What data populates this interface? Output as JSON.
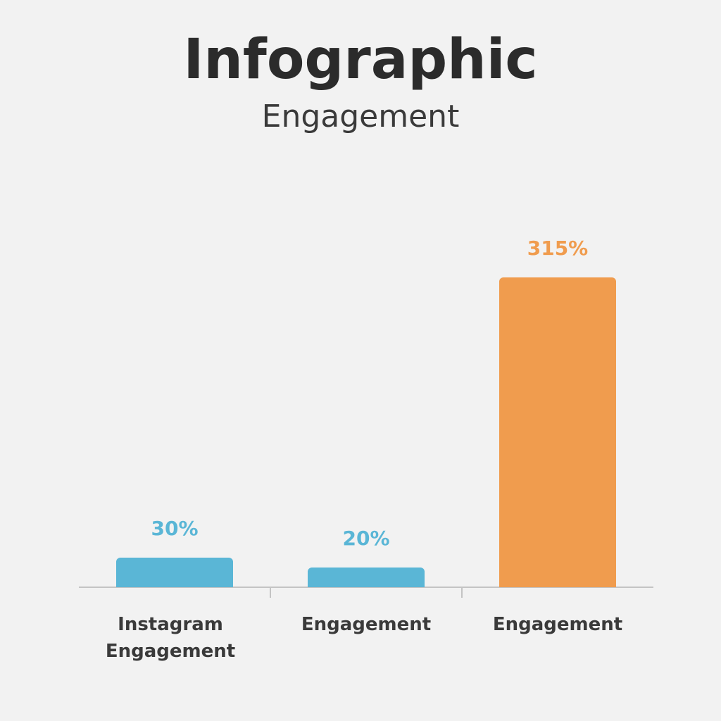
{
  "chart_data": {
    "type": "bar",
    "title": "Infographic",
    "subtitle": "Engagement",
    "categories": [
      "Instagram Engagement",
      "Engagement",
      "Engagement"
    ],
    "values": [
      30,
      20,
      315
    ],
    "value_labels": [
      "30%",
      "20%",
      "315%"
    ],
    "colors": [
      "#5ab6d6",
      "#5ab6d6",
      "#f09c4e"
    ]
  }
}
